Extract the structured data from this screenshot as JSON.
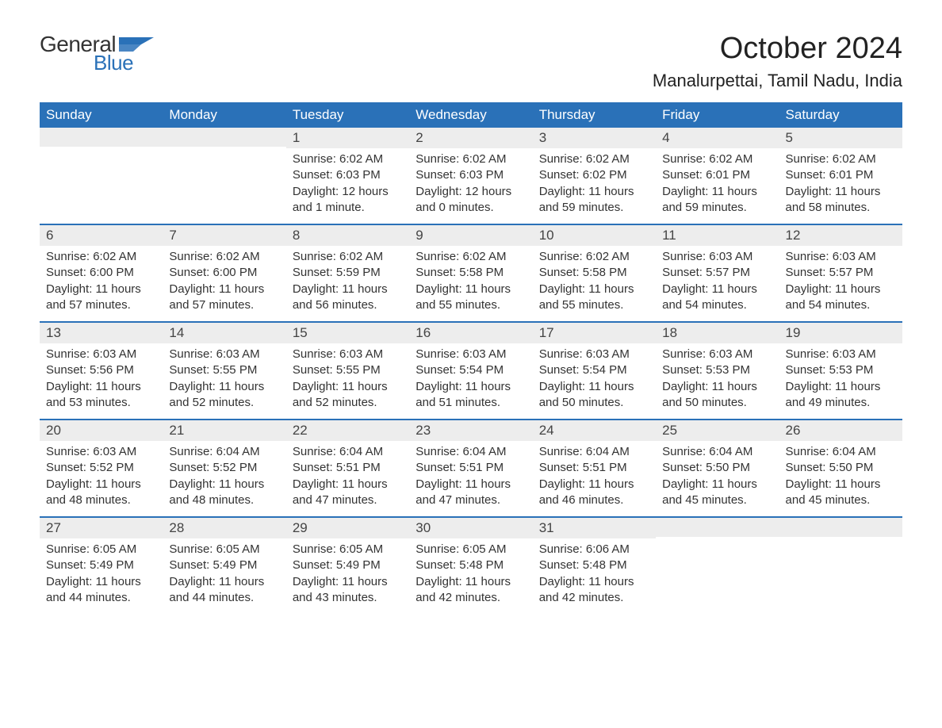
{
  "brand": {
    "word1": "General",
    "word2": "Blue",
    "flag_color": "#2a71b8",
    "text1_color": "#333333",
    "text2_color": "#2a71b8"
  },
  "header": {
    "month_title": "October 2024",
    "location": "Manalurpettai, Tamil Nadu, India"
  },
  "style": {
    "header_bg": "#2a71b8",
    "header_fg": "#ffffff",
    "daynum_bg": "#ededed",
    "week_border": "#2a71b8",
    "body_fg": "#333333",
    "page_bg": "#ffffff",
    "font_family": "Arial",
    "month_title_fontsize": 38,
    "location_fontsize": 22,
    "dayhead_fontsize": 17,
    "daynum_fontsize": 17,
    "body_fontsize": 15
  },
  "dayheads": [
    "Sunday",
    "Monday",
    "Tuesday",
    "Wednesday",
    "Thursday",
    "Friday",
    "Saturday"
  ],
  "weeks": [
    [
      {
        "empty": true
      },
      {
        "empty": true
      },
      {
        "num": "1",
        "sunrise": "Sunrise: 6:02 AM",
        "sunset": "Sunset: 6:03 PM",
        "daylight": "Daylight: 12 hours and 1 minute."
      },
      {
        "num": "2",
        "sunrise": "Sunrise: 6:02 AM",
        "sunset": "Sunset: 6:03 PM",
        "daylight": "Daylight: 12 hours and 0 minutes."
      },
      {
        "num": "3",
        "sunrise": "Sunrise: 6:02 AM",
        "sunset": "Sunset: 6:02 PM",
        "daylight": "Daylight: 11 hours and 59 minutes."
      },
      {
        "num": "4",
        "sunrise": "Sunrise: 6:02 AM",
        "sunset": "Sunset: 6:01 PM",
        "daylight": "Daylight: 11 hours and 59 minutes."
      },
      {
        "num": "5",
        "sunrise": "Sunrise: 6:02 AM",
        "sunset": "Sunset: 6:01 PM",
        "daylight": "Daylight: 11 hours and 58 minutes."
      }
    ],
    [
      {
        "num": "6",
        "sunrise": "Sunrise: 6:02 AM",
        "sunset": "Sunset: 6:00 PM",
        "daylight": "Daylight: 11 hours and 57 minutes."
      },
      {
        "num": "7",
        "sunrise": "Sunrise: 6:02 AM",
        "sunset": "Sunset: 6:00 PM",
        "daylight": "Daylight: 11 hours and 57 minutes."
      },
      {
        "num": "8",
        "sunrise": "Sunrise: 6:02 AM",
        "sunset": "Sunset: 5:59 PM",
        "daylight": "Daylight: 11 hours and 56 minutes."
      },
      {
        "num": "9",
        "sunrise": "Sunrise: 6:02 AM",
        "sunset": "Sunset: 5:58 PM",
        "daylight": "Daylight: 11 hours and 55 minutes."
      },
      {
        "num": "10",
        "sunrise": "Sunrise: 6:02 AM",
        "sunset": "Sunset: 5:58 PM",
        "daylight": "Daylight: 11 hours and 55 minutes."
      },
      {
        "num": "11",
        "sunrise": "Sunrise: 6:03 AM",
        "sunset": "Sunset: 5:57 PM",
        "daylight": "Daylight: 11 hours and 54 minutes."
      },
      {
        "num": "12",
        "sunrise": "Sunrise: 6:03 AM",
        "sunset": "Sunset: 5:57 PM",
        "daylight": "Daylight: 11 hours and 54 minutes."
      }
    ],
    [
      {
        "num": "13",
        "sunrise": "Sunrise: 6:03 AM",
        "sunset": "Sunset: 5:56 PM",
        "daylight": "Daylight: 11 hours and 53 minutes."
      },
      {
        "num": "14",
        "sunrise": "Sunrise: 6:03 AM",
        "sunset": "Sunset: 5:55 PM",
        "daylight": "Daylight: 11 hours and 52 minutes."
      },
      {
        "num": "15",
        "sunrise": "Sunrise: 6:03 AM",
        "sunset": "Sunset: 5:55 PM",
        "daylight": "Daylight: 11 hours and 52 minutes."
      },
      {
        "num": "16",
        "sunrise": "Sunrise: 6:03 AM",
        "sunset": "Sunset: 5:54 PM",
        "daylight": "Daylight: 11 hours and 51 minutes."
      },
      {
        "num": "17",
        "sunrise": "Sunrise: 6:03 AM",
        "sunset": "Sunset: 5:54 PM",
        "daylight": "Daylight: 11 hours and 50 minutes."
      },
      {
        "num": "18",
        "sunrise": "Sunrise: 6:03 AM",
        "sunset": "Sunset: 5:53 PM",
        "daylight": "Daylight: 11 hours and 50 minutes."
      },
      {
        "num": "19",
        "sunrise": "Sunrise: 6:03 AM",
        "sunset": "Sunset: 5:53 PM",
        "daylight": "Daylight: 11 hours and 49 minutes."
      }
    ],
    [
      {
        "num": "20",
        "sunrise": "Sunrise: 6:03 AM",
        "sunset": "Sunset: 5:52 PM",
        "daylight": "Daylight: 11 hours and 48 minutes."
      },
      {
        "num": "21",
        "sunrise": "Sunrise: 6:04 AM",
        "sunset": "Sunset: 5:52 PM",
        "daylight": "Daylight: 11 hours and 48 minutes."
      },
      {
        "num": "22",
        "sunrise": "Sunrise: 6:04 AM",
        "sunset": "Sunset: 5:51 PM",
        "daylight": "Daylight: 11 hours and 47 minutes."
      },
      {
        "num": "23",
        "sunrise": "Sunrise: 6:04 AM",
        "sunset": "Sunset: 5:51 PM",
        "daylight": "Daylight: 11 hours and 47 minutes."
      },
      {
        "num": "24",
        "sunrise": "Sunrise: 6:04 AM",
        "sunset": "Sunset: 5:51 PM",
        "daylight": "Daylight: 11 hours and 46 minutes."
      },
      {
        "num": "25",
        "sunrise": "Sunrise: 6:04 AM",
        "sunset": "Sunset: 5:50 PM",
        "daylight": "Daylight: 11 hours and 45 minutes."
      },
      {
        "num": "26",
        "sunrise": "Sunrise: 6:04 AM",
        "sunset": "Sunset: 5:50 PM",
        "daylight": "Daylight: 11 hours and 45 minutes."
      }
    ],
    [
      {
        "num": "27",
        "sunrise": "Sunrise: 6:05 AM",
        "sunset": "Sunset: 5:49 PM",
        "daylight": "Daylight: 11 hours and 44 minutes."
      },
      {
        "num": "28",
        "sunrise": "Sunrise: 6:05 AM",
        "sunset": "Sunset: 5:49 PM",
        "daylight": "Daylight: 11 hours and 44 minutes."
      },
      {
        "num": "29",
        "sunrise": "Sunrise: 6:05 AM",
        "sunset": "Sunset: 5:49 PM",
        "daylight": "Daylight: 11 hours and 43 minutes."
      },
      {
        "num": "30",
        "sunrise": "Sunrise: 6:05 AM",
        "sunset": "Sunset: 5:48 PM",
        "daylight": "Daylight: 11 hours and 42 minutes."
      },
      {
        "num": "31",
        "sunrise": "Sunrise: 6:06 AM",
        "sunset": "Sunset: 5:48 PM",
        "daylight": "Daylight: 11 hours and 42 minutes."
      },
      {
        "empty": true
      },
      {
        "empty": true
      }
    ]
  ]
}
